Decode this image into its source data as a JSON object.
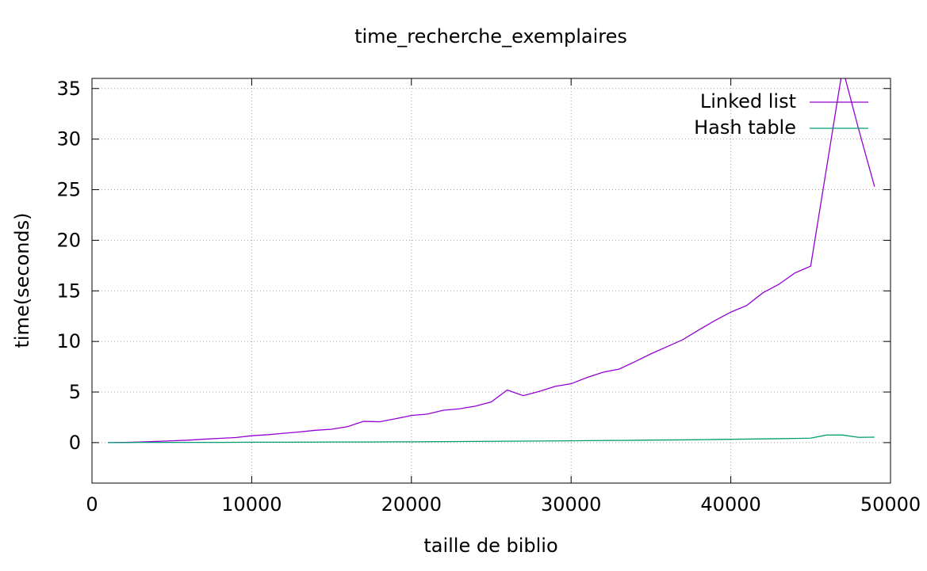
{
  "chart_data": {
    "type": "line",
    "title": "time_recherche_exemplaires",
    "xlabel": "taille de biblio",
    "ylabel": "time(seconds)",
    "xlim": [
      0,
      50000
    ],
    "ylim": [
      -4,
      36
    ],
    "x_ticks": [
      0,
      10000,
      20000,
      30000,
      40000,
      50000
    ],
    "y_ticks": [
      0,
      5,
      10,
      15,
      20,
      25,
      30,
      35
    ],
    "grid": true,
    "legend_position": "top-right",
    "x": [
      1000,
      2000,
      3000,
      4000,
      5000,
      6000,
      7000,
      8000,
      9000,
      10000,
      11000,
      12000,
      13000,
      14000,
      15000,
      16000,
      17000,
      18000,
      19000,
      20000,
      21000,
      22000,
      23000,
      24000,
      25000,
      26000,
      27000,
      28000,
      29000,
      30000,
      31000,
      32000,
      33000,
      34000,
      35000,
      36000,
      37000,
      38000,
      39000,
      40000,
      41000,
      42000,
      43000,
      44000,
      45000,
      46000,
      47000,
      48000,
      49000
    ],
    "series": [
      {
        "name": "Linked list",
        "color": "#9400d3",
        "values": [
          0.0,
          0.02,
          0.06,
          0.12,
          0.18,
          0.24,
          0.34,
          0.42,
          0.5,
          0.68,
          0.78,
          0.92,
          1.06,
          1.22,
          1.32,
          1.58,
          2.1,
          2.06,
          2.36,
          2.68,
          2.82,
          3.2,
          3.34,
          3.6,
          4.02,
          5.2,
          4.64,
          5.06,
          5.56,
          5.82,
          6.44,
          6.96,
          7.26,
          8.0,
          8.78,
          9.48,
          10.18,
          11.14,
          12.06,
          12.9,
          13.56,
          14.8,
          15.64,
          16.76,
          17.44,
          27.2,
          37.0,
          31.0,
          25.3
        ]
      },
      {
        "name": "Hash table",
        "color": "#009e73",
        "values": [
          0.0,
          0.0,
          0.02,
          0.02,
          0.02,
          0.02,
          0.02,
          0.02,
          0.03,
          0.04,
          0.04,
          0.04,
          0.05,
          0.05,
          0.06,
          0.06,
          0.06,
          0.07,
          0.08,
          0.08,
          0.09,
          0.1,
          0.11,
          0.12,
          0.13,
          0.14,
          0.15,
          0.16,
          0.17,
          0.18,
          0.2,
          0.21,
          0.22,
          0.23,
          0.25,
          0.26,
          0.27,
          0.29,
          0.31,
          0.33,
          0.35,
          0.37,
          0.39,
          0.41,
          0.44,
          0.75,
          0.75,
          0.52,
          0.54
        ]
      }
    ]
  }
}
